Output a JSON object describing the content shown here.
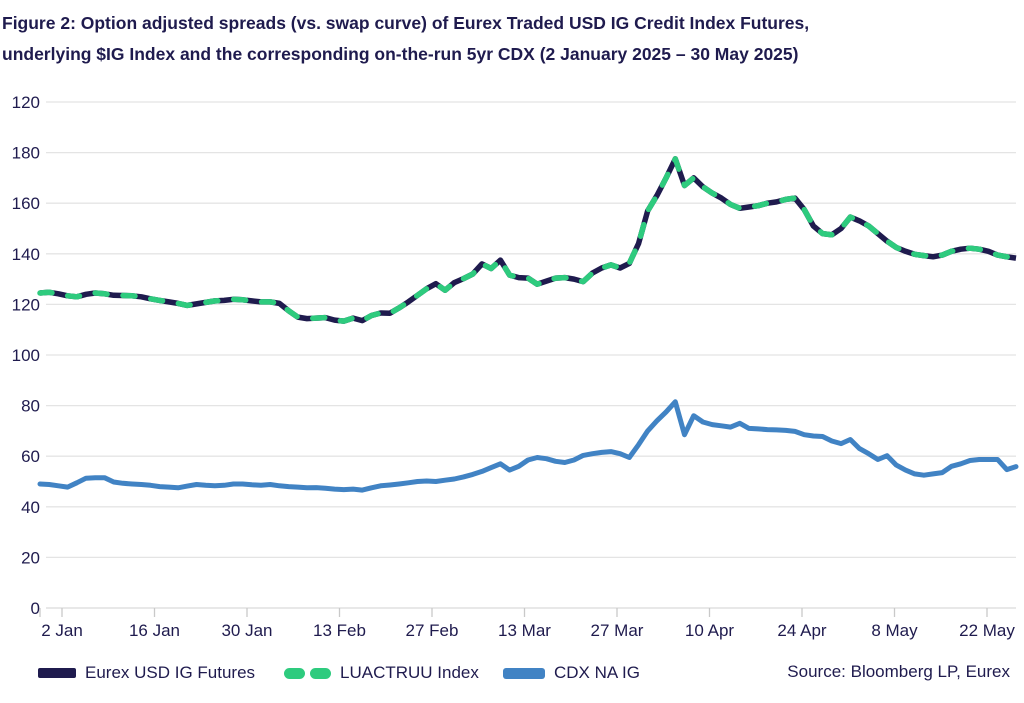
{
  "figure": {
    "title_line1": "Figure 2: Option adjusted spreads (vs. swap curve) of Eurex Traded USD IG Credit Index Futures,",
    "title_line2": "underlying $IG Index and the corresponding on-the-run 5yr CDX (2 January 2025 – 30 May 2025)"
  },
  "source_text": "Source: Bloomberg LP, Eurex",
  "colors": {
    "navy": "#1f1b4e",
    "green": "#2ecb7e",
    "blue": "#4183c4",
    "grid": "#e4e4e4",
    "axis": "#d9d9d9",
    "tick": "#c9c9c9",
    "text": "#1f1b4e"
  },
  "legend": [
    {
      "label": "Eurex USD IG Futures",
      "swatch": "navy-solid-bar"
    },
    {
      "label": "LUACTRUU Index",
      "swatch": "green-dashes"
    },
    {
      "label": "CDX NA IG",
      "swatch": "blue-solid-bar"
    }
  ],
  "chart_data": {
    "type": "line",
    "title": "Option adjusted spreads (bps) vs. swap curve, 2 Jan 2025 - 30 May 2025",
    "x_unit": "business days from 2 Jan 2025 to 30 May 2025",
    "x_tick_labels": [
      "2 Jan",
      "16 Jan",
      "30 Jan",
      "13 Feb",
      "27 Feb",
      "13 Mar",
      "27 Mar",
      "10 Apr",
      "24 Apr",
      "8 May",
      "22 May"
    ],
    "y_tick_labels_bottom_to_top": [
      "0",
      "20",
      "40",
      "60",
      "80",
      "100",
      "120",
      "140",
      "160",
      "180",
      "120"
    ],
    "y_axis_note": "gridlines every 20 units from 0 to 200; topmost gridline is labelled 120 in the source image",
    "ylim": [
      0,
      200
    ],
    "grid": "horizontal",
    "legend_position": "bottom",
    "series": [
      {
        "name": "Eurex USD IG Futures",
        "color": "#1f1b4e",
        "style": "solid",
        "values": [
          124.5,
          124.8,
          124.2,
          123.4,
          123.0,
          124.0,
          124.5,
          124.2,
          123.6,
          123.5,
          123.4,
          123.0,
          122.2,
          121.6,
          121.0,
          120.4,
          119.6,
          120.2,
          120.8,
          121.4,
          121.6,
          122.0,
          121.8,
          121.4,
          121.0,
          121.0,
          120.4,
          117.5,
          115.0,
          114.4,
          114.6,
          114.8,
          113.8,
          113.4,
          114.6,
          113.6,
          115.6,
          116.6,
          116.5,
          118.6,
          121.0,
          123.6,
          126.2,
          128.2,
          125.6,
          128.6,
          130.2,
          132.0,
          136.0,
          134.2,
          137.5,
          131.6,
          130.6,
          130.4,
          128.0,
          129.2,
          130.4,
          130.6,
          130.0,
          129.0,
          132.4,
          134.4,
          135.6,
          134.4,
          136.2,
          144.0,
          157.0,
          163.0,
          170.0,
          177.5,
          167.0,
          170.0,
          166.5,
          164.0,
          162.0,
          159.5,
          158.0,
          158.5,
          159.0,
          160.0,
          160.5,
          161.5,
          162.0,
          157.5,
          151.0,
          148.0,
          147.5,
          150.0,
          154.5,
          153.0,
          151.0,
          148.0,
          145.0,
          142.5,
          141.0,
          139.8,
          139.3,
          138.8,
          139.5,
          141.0,
          141.8,
          142.2,
          141.8,
          141.0,
          139.5,
          138.8,
          138.3
        ]
      },
      {
        "name": "LUACTRUU Index",
        "color": "#2ecb7e",
        "style": "dashed",
        "note": "overlaps Eurex USD IG Futures series almost exactly",
        "values": [
          124.5,
          124.8,
          124.2,
          123.4,
          123.0,
          124.0,
          124.5,
          124.2,
          123.6,
          123.5,
          123.4,
          123.0,
          122.2,
          121.6,
          121.0,
          120.4,
          119.6,
          120.2,
          120.8,
          121.4,
          121.6,
          122.0,
          121.8,
          121.4,
          121.0,
          121.0,
          120.4,
          117.5,
          115.0,
          114.4,
          114.6,
          114.8,
          113.8,
          113.4,
          114.6,
          113.6,
          115.6,
          116.6,
          116.5,
          118.6,
          121.0,
          123.6,
          126.2,
          128.2,
          125.6,
          128.6,
          130.2,
          132.0,
          136.0,
          134.2,
          137.5,
          131.6,
          130.6,
          130.4,
          128.0,
          129.2,
          130.4,
          130.6,
          130.0,
          129.0,
          132.4,
          134.4,
          135.6,
          134.4,
          136.2,
          144.0,
          157.0,
          163.0,
          170.0,
          177.5,
          167.0,
          170.0,
          166.5,
          164.0,
          162.0,
          159.5,
          158.0,
          158.5,
          159.0,
          160.0,
          160.5,
          161.5,
          162.0,
          157.5,
          151.0,
          148.0,
          147.5,
          150.0,
          154.5,
          153.0,
          151.0,
          148.0,
          145.0,
          142.5,
          141.0,
          139.8,
          139.3,
          138.8,
          139.5,
          141.0,
          141.8,
          142.2,
          141.8,
          141.0,
          139.5,
          138.8,
          138.3
        ]
      },
      {
        "name": "CDX NA IG",
        "color": "#4183c4",
        "style": "solid",
        "values": [
          49.0,
          48.8,
          48.3,
          47.8,
          49.5,
          51.3,
          51.5,
          51.5,
          49.8,
          49.3,
          49.0,
          48.8,
          48.5,
          48.0,
          47.8,
          47.5,
          48.2,
          48.8,
          48.5,
          48.3,
          48.5,
          49.0,
          49.0,
          48.7,
          48.5,
          48.8,
          48.3,
          48.0,
          47.8,
          47.5,
          47.6,
          47.3,
          47.0,
          46.8,
          47.0,
          46.6,
          47.5,
          48.3,
          48.6,
          49.0,
          49.5,
          50.0,
          50.2,
          50.0,
          50.5,
          51.0,
          51.8,
          52.8,
          54.0,
          55.5,
          57.0,
          54.5,
          56.0,
          58.5,
          59.5,
          59.0,
          58.0,
          57.5,
          58.5,
          60.3,
          61.0,
          61.5,
          61.8,
          61.0,
          59.5,
          64.5,
          70.0,
          74.0,
          77.5,
          81.5,
          68.5,
          76.0,
          73.5,
          72.5,
          72.0,
          71.5,
          73.0,
          71.0,
          70.8,
          70.5,
          70.4,
          70.2,
          69.8,
          68.5,
          68.0,
          67.8,
          66.0,
          65.0,
          66.6,
          63.0,
          61.0,
          58.7,
          60.2,
          56.5,
          54.5,
          53.0,
          52.5,
          53.0,
          53.5,
          56.0,
          57.0,
          58.3,
          58.7,
          58.7,
          58.7,
          54.7,
          55.9
        ]
      }
    ]
  }
}
